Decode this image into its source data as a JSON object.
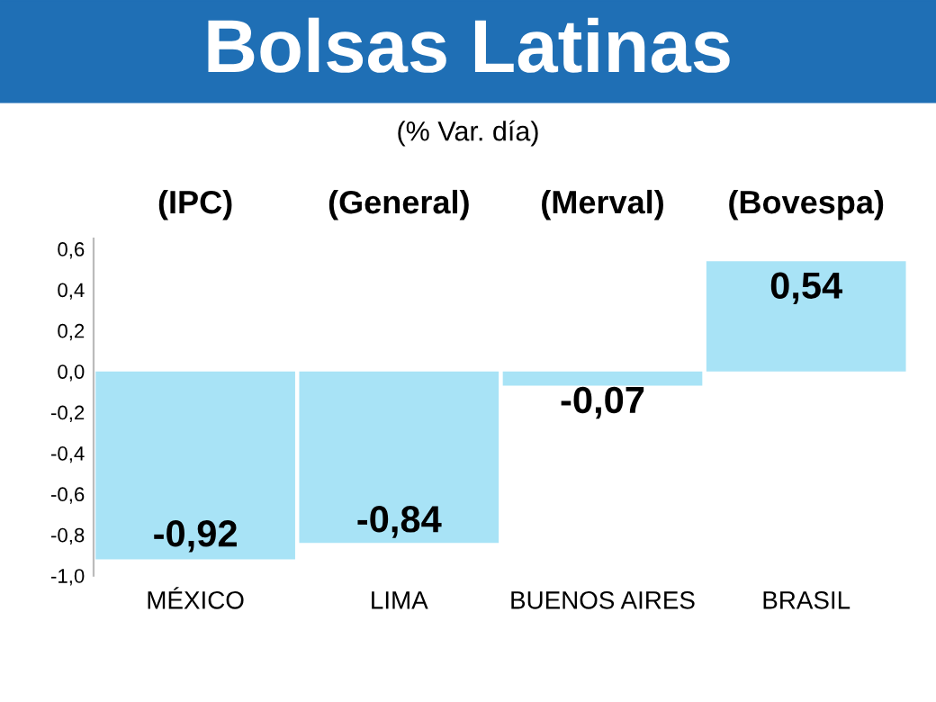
{
  "chart_data": {
    "type": "bar",
    "title": "Bolsas Latinas",
    "subtitle": "(% Var. día)",
    "categories": [
      "MÉXICO",
      "LIMA",
      "BUENOS AIRES",
      "BRASIL"
    ],
    "values": [
      -0.92,
      -0.84,
      -0.07,
      0.54
    ],
    "value_labels": [
      "-0,92",
      "-0,84",
      "-0,07",
      "0,54"
    ],
    "color": "#a8e3f6",
    "ylim": [
      -1.0,
      0.65
    ],
    "yticks": [
      {
        "value": -1.0,
        "label": "-1,0"
      },
      {
        "value": -0.8,
        "label": "-0,8"
      },
      {
        "value": -0.6,
        "label": "-0,6"
      },
      {
        "value": -0.4,
        "label": "-0,4"
      },
      {
        "value": -0.2,
        "label": "-0,2"
      },
      {
        "value": 0.0,
        "label": "0,0"
      },
      {
        "value": 0.2,
        "label": "0,2"
      },
      {
        "value": 0.4,
        "label": "0,4"
      },
      {
        "value": 0.6,
        "label": "0,6"
      }
    ],
    "annotations": [
      "(IPC)",
      "(General)",
      "(Merval)",
      "(Bovespa)"
    ],
    "grid": false,
    "legend": false
  }
}
